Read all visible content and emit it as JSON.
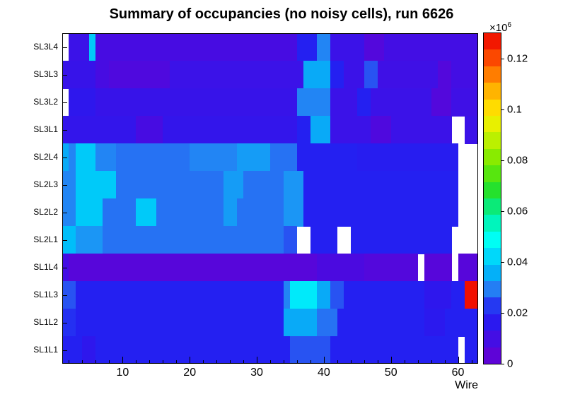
{
  "title": "Summary of occupancies (no noisy cells), run 6626",
  "chart_data": {
    "type": "heatmap",
    "title": "Summary of occupancies (no noisy cells), run 6626",
    "xlabel": "Wire",
    "ylabel": "",
    "x_bins": {
      "start": 1,
      "end": 63,
      "count": 62
    },
    "x_ticks": [
      10,
      20,
      30,
      40,
      50,
      60
    ],
    "y_rows_top_to_bottom": [
      "SL3L4",
      "SL3L3",
      "SL3L2",
      "SL3L1",
      "SL2L4",
      "SL2L3",
      "SL2L2",
      "SL2L1",
      "SL1L4",
      "SL1L3",
      "SL1L2",
      "SL1L1"
    ],
    "z_unit": 1000000,
    "z_scale_mantissa": "×10",
    "z_scale_exponent": "6",
    "zmin": 0,
    "zmax": 0.13,
    "colorbar_ticks": [
      "0",
      "0.02",
      "0.04",
      "0.06",
      "0.08",
      "0.1",
      "0.12"
    ],
    "colorbar_tick_values": [
      0,
      0.02,
      0.04,
      0.06,
      0.08,
      0.1,
      0.12
    ],
    "colorbar_bands": 20,
    "grid": false,
    "legend_position": "right-colorbar",
    "value_note": "runs are [wire_count, occupancy_in_1e6]; null = empty (white) cells",
    "palette_stops": [
      [
        0.0,
        "#6a00d0"
      ],
      [
        0.06,
        "#4c0ae0"
      ],
      [
        0.12,
        "#2c18ee"
      ],
      [
        0.16,
        "#2222f2"
      ],
      [
        0.2,
        "#2a5ff2"
      ],
      [
        0.24,
        "#2090f5"
      ],
      [
        0.28,
        "#00b4f8"
      ],
      [
        0.32,
        "#00d4fa"
      ],
      [
        0.37,
        "#00fffa"
      ],
      [
        0.45,
        "#00f0a0"
      ],
      [
        0.52,
        "#20e030"
      ],
      [
        0.6,
        "#70e800"
      ],
      [
        0.68,
        "#c0f000"
      ],
      [
        0.75,
        "#fff000"
      ],
      [
        0.83,
        "#ffb000"
      ],
      [
        0.9,
        "#ff6000"
      ],
      [
        1.0,
        "#ee0000"
      ]
    ],
    "rows": [
      {
        "name": "SL3L4",
        "runs": [
          [
            1,
            null
          ],
          [
            3,
            0.012
          ],
          [
            1,
            0.04
          ],
          [
            30,
            0.009
          ],
          [
            3,
            0.02
          ],
          [
            2,
            0.03
          ],
          [
            5,
            0.012
          ],
          [
            3,
            0.006
          ],
          [
            14,
            0.01
          ]
        ]
      },
      {
        "name": "SL3L3",
        "runs": [
          [
            5,
            0.013
          ],
          [
            2,
            0.009
          ],
          [
            9,
            0.007
          ],
          [
            20,
            0.012
          ],
          [
            4,
            0.035
          ],
          [
            2,
            0.02
          ],
          [
            3,
            0.012
          ],
          [
            2,
            0.025
          ],
          [
            9,
            0.011
          ],
          [
            2,
            0.006
          ],
          [
            4,
            0.01
          ]
        ]
      },
      {
        "name": "SL3L2",
        "runs": [
          [
            1,
            null
          ],
          [
            4,
            0.015
          ],
          [
            30,
            0.013
          ],
          [
            5,
            0.03
          ],
          [
            4,
            0.012
          ],
          [
            2,
            0.02
          ],
          [
            9,
            0.012
          ],
          [
            3,
            0.006
          ],
          [
            4,
            0.011
          ]
        ]
      },
      {
        "name": "SL3L1",
        "runs": [
          [
            11,
            0.014
          ],
          [
            4,
            0.009
          ],
          [
            20,
            0.014
          ],
          [
            2,
            0.02
          ],
          [
            3,
            0.035
          ],
          [
            6,
            0.012
          ],
          [
            3,
            0.007
          ],
          [
            9,
            0.012
          ],
          [
            2,
            null
          ],
          [
            2,
            0.012
          ]
        ]
      },
      {
        "name": "SL2L4",
        "runs": [
          [
            1,
            0.035
          ],
          [
            1,
            0.03
          ],
          [
            3,
            0.04
          ],
          [
            3,
            0.03
          ],
          [
            11,
            0.028
          ],
          [
            7,
            0.03
          ],
          [
            5,
            0.033
          ],
          [
            4,
            0.028
          ],
          [
            9,
            0.02
          ],
          [
            15,
            0.018
          ],
          [
            3,
            null
          ]
        ]
      },
      {
        "name": "SL2L3",
        "runs": [
          [
            2,
            0.03
          ],
          [
            6,
            0.04
          ],
          [
            16,
            0.028
          ],
          [
            3,
            0.033
          ],
          [
            6,
            0.028
          ],
          [
            3,
            0.032
          ],
          [
            23,
            0.02
          ],
          [
            3,
            null
          ]
        ]
      },
      {
        "name": "SL2L2",
        "runs": [
          [
            2,
            0.03
          ],
          [
            4,
            0.04
          ],
          [
            5,
            0.028
          ],
          [
            3,
            0.04
          ],
          [
            10,
            0.028
          ],
          [
            2,
            0.033
          ],
          [
            7,
            0.028
          ],
          [
            3,
            0.032
          ],
          [
            23,
            0.02
          ],
          [
            3,
            null
          ]
        ]
      },
      {
        "name": "SL2L1",
        "runs": [
          [
            2,
            0.038
          ],
          [
            4,
            0.032
          ],
          [
            27,
            0.028
          ],
          [
            2,
            0.025
          ],
          [
            2,
            null
          ],
          [
            4,
            0.02
          ],
          [
            2,
            null
          ],
          [
            15,
            0.02
          ],
          [
            4,
            null
          ]
        ]
      },
      {
        "name": "SL1L4",
        "runs": [
          [
            1,
            0.01
          ],
          [
            37,
            0.005
          ],
          [
            7,
            0.008
          ],
          [
            8,
            0.006
          ],
          [
            1,
            null
          ],
          [
            4,
            0.005
          ],
          [
            1,
            null
          ],
          [
            3,
            0.005
          ]
        ]
      },
      {
        "name": "SL1L3",
        "runs": [
          [
            2,
            0.025
          ],
          [
            31,
            0.02
          ],
          [
            1,
            0.03
          ],
          [
            4,
            0.045
          ],
          [
            2,
            0.035
          ],
          [
            2,
            0.025
          ],
          [
            12,
            0.02
          ],
          [
            4,
            0.015
          ],
          [
            2,
            0.02
          ],
          [
            2,
            0.128
          ]
        ]
      },
      {
        "name": "SL1L2",
        "runs": [
          [
            2,
            0.022
          ],
          [
            31,
            0.02
          ],
          [
            5,
            0.035
          ],
          [
            3,
            0.028
          ],
          [
            13,
            0.02
          ],
          [
            3,
            0.016
          ],
          [
            5,
            0.02
          ]
        ]
      },
      {
        "name": "SL1L1",
        "runs": [
          [
            3,
            0.02
          ],
          [
            2,
            0.015
          ],
          [
            29,
            0.02
          ],
          [
            6,
            0.025
          ],
          [
            19,
            0.02
          ],
          [
            1,
            null
          ],
          [
            2,
            0.02
          ]
        ]
      }
    ]
  }
}
